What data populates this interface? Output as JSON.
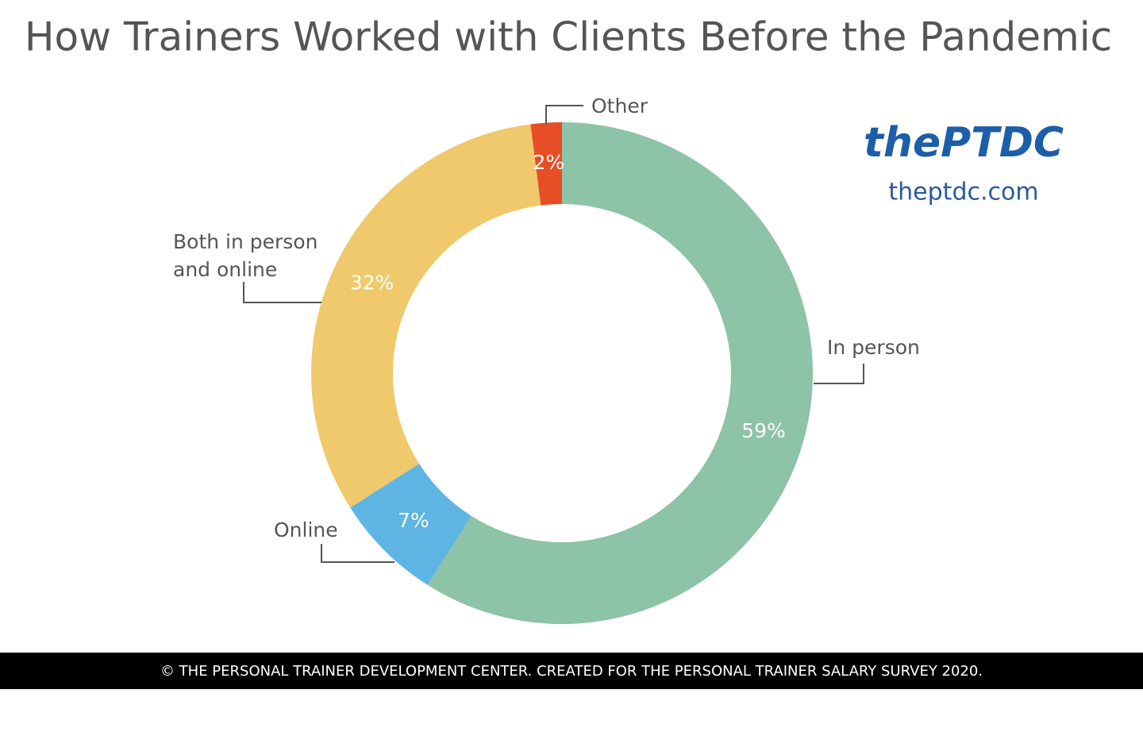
{
  "chart_data": {
    "type": "donut",
    "title": "How Trainers Worked with Clients Before the Pandemic",
    "categories": [
      "In person",
      "Online",
      "Both in person and online",
      "Other"
    ],
    "values": [
      59,
      7,
      32,
      2
    ],
    "value_labels": [
      "59%",
      "7%",
      "32%",
      "2%"
    ],
    "colors": [
      "#8dc3a7",
      "#5eb5e4",
      "#efc96b",
      "#e84e26"
    ]
  },
  "logo": {
    "mark": "thePTDC",
    "url": "theptdc.com"
  },
  "footer": "© THE PERSONAL TRAINER DEVELOPMENT CENTER. CREATED FOR THE PERSONAL TRAINER SALARY SURVEY 2020."
}
